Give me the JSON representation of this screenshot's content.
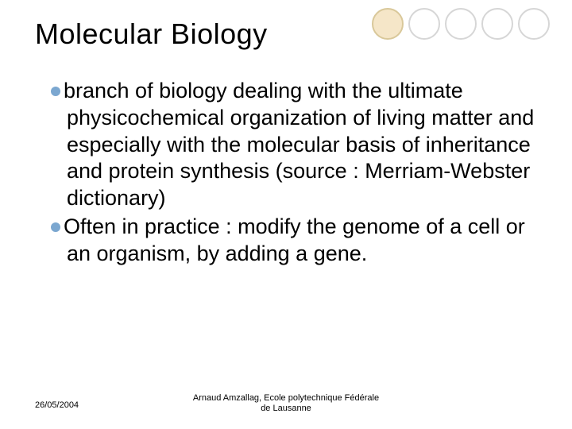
{
  "title": "Molecular Biology",
  "title_fontsize": 36,
  "body_fontsize": 27,
  "footer_fontsize": 11,
  "text_color": "#000000",
  "background_color": "#ffffff",
  "bullets": [
    {
      "dot_color": "#7ba7d0",
      "text": "branch of biology dealing with the ultimate physicochemical organization of living matter and especially with the molecular basis of inheritance and protein synthesis (source : Merriam-Webster dictionary)"
    },
    {
      "dot_color": "#7ba7d0",
      "text": "Often in practice : modify the genome of a cell or an organism, by adding a gene."
    }
  ],
  "decor_circles": [
    {
      "fill": "#f5e6c8",
      "border": "#d9c89a",
      "border_width": 2
    },
    {
      "fill": "#ffffff",
      "border": "#d6d6d6",
      "border_width": 2
    },
    {
      "fill": "#ffffff",
      "border": "#d6d6d6",
      "border_width": 2
    },
    {
      "fill": "#ffffff",
      "border": "#d6d6d6",
      "border_width": 2
    },
    {
      "fill": "#ffffff",
      "border": "#d6d6d6",
      "border_width": 2
    }
  ],
  "footer": {
    "date": "26/05/2004",
    "author_line1": "Arnaud Amzallag, Ecole polytechnique Fédérale",
    "author_line2": "de Lausanne"
  }
}
